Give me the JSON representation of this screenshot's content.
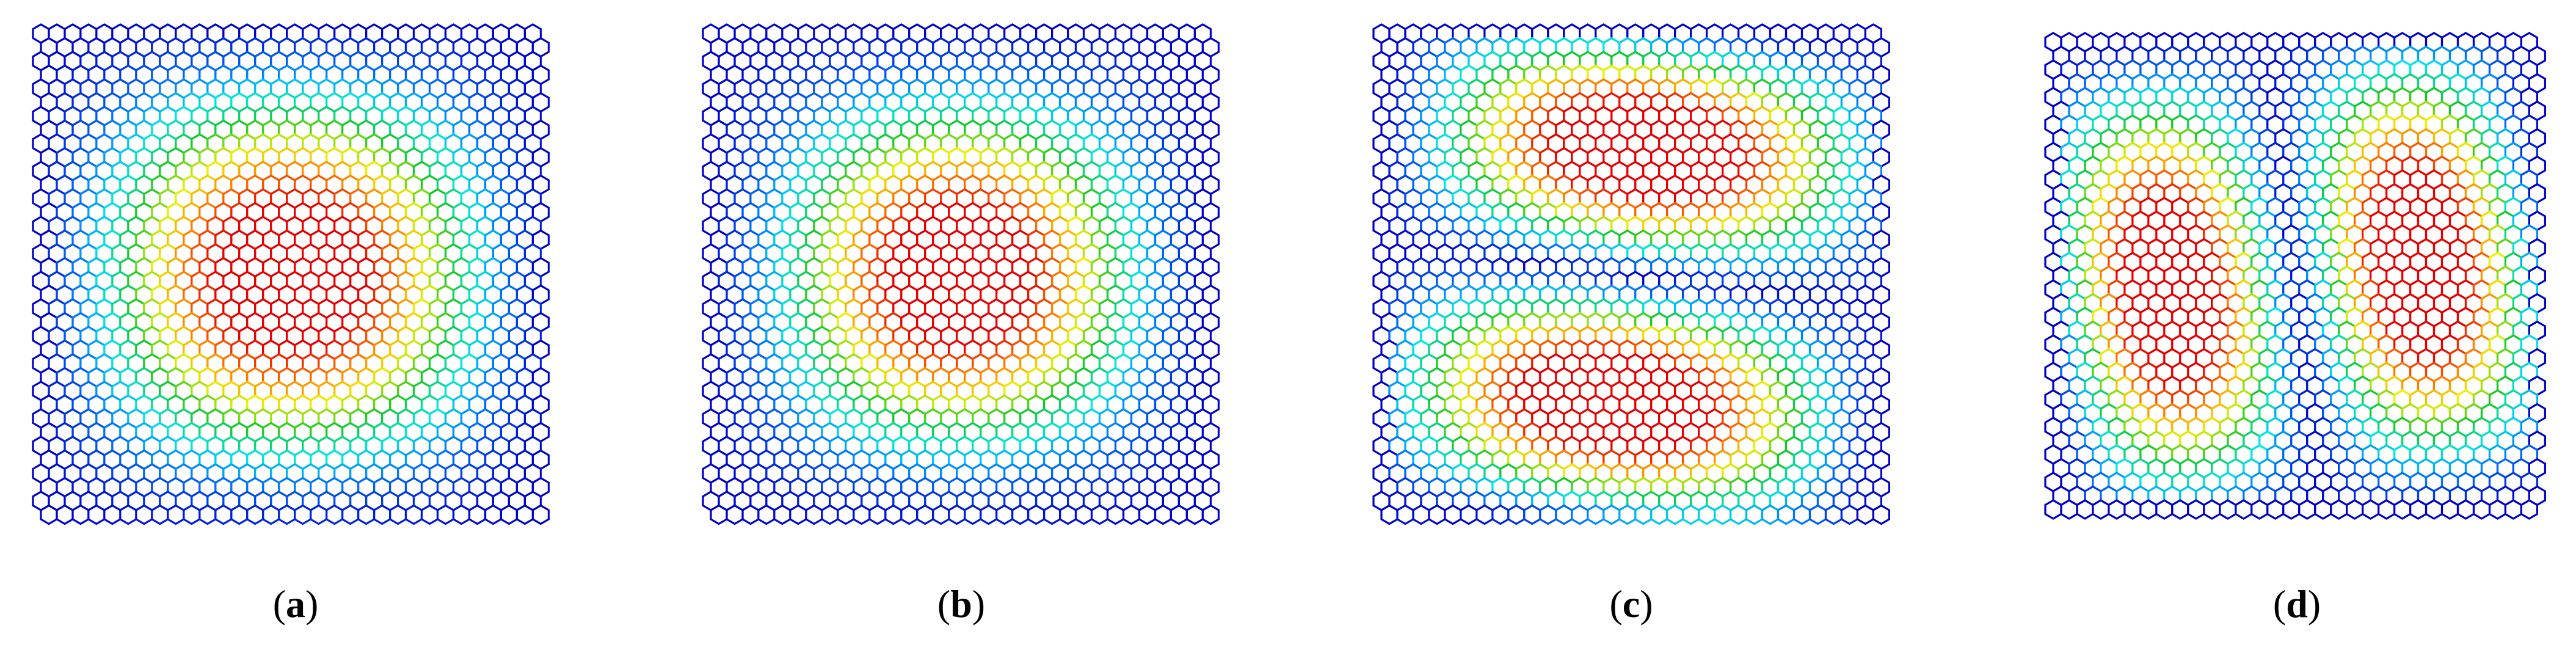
{
  "panels": [
    {
      "label": [
        "(",
        "a",
        ")"
      ]
    },
    {
      "label": [
        "(",
        "b",
        ")"
      ]
    },
    {
      "label": [
        "(",
        "c",
        ")"
      ]
    },
    {
      "label": [
        "(",
        "d",
        ")"
      ]
    }
  ]
}
